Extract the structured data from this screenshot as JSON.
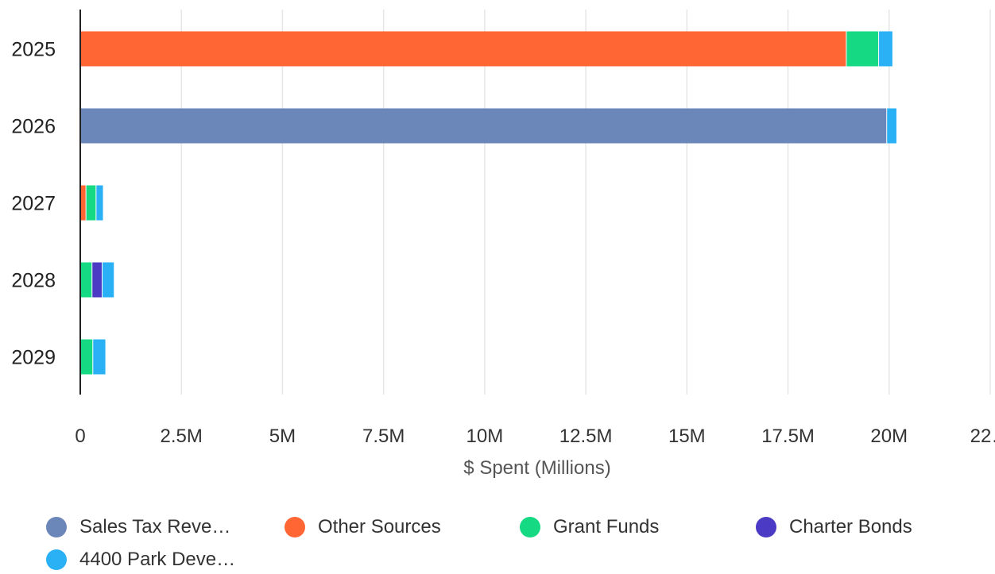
{
  "chart_data": {
    "type": "bar",
    "orientation": "horizontal",
    "stacked": true,
    "categories": [
      "2025",
      "2026",
      "2027",
      "2028",
      "2029"
    ],
    "series": [
      {
        "name": "Sales Tax Reve…",
        "color": "#6b86b8",
        "values": [
          0,
          19950000,
          0,
          0,
          0
        ]
      },
      {
        "name": "Other Sources",
        "color": "#ff6633",
        "values": [
          18950000,
          0,
          150000,
          0,
          0
        ]
      },
      {
        "name": "Grant Funds",
        "color": "#16d983",
        "values": [
          800000,
          0,
          250000,
          300000,
          320000
        ]
      },
      {
        "name": "Charter Bonds",
        "color": "#4b3bc4",
        "values": [
          0,
          0,
          0,
          250000,
          0
        ]
      },
      {
        "name": "4400 Park Deve…",
        "color": "#2ab0f5",
        "values": [
          350000,
          250000,
          180000,
          300000,
          320000
        ]
      }
    ],
    "xlim": [
      0,
      22500000
    ],
    "x_ticks": [
      "0",
      "2.5M",
      "5M",
      "7.5M",
      "10M",
      "12.5M",
      "15M",
      "17.5M",
      "20M",
      "22…"
    ],
    "xlabel": "$ Spent (Millions)",
    "ylabel": "",
    "grid": true,
    "legend_position": "bottom"
  }
}
